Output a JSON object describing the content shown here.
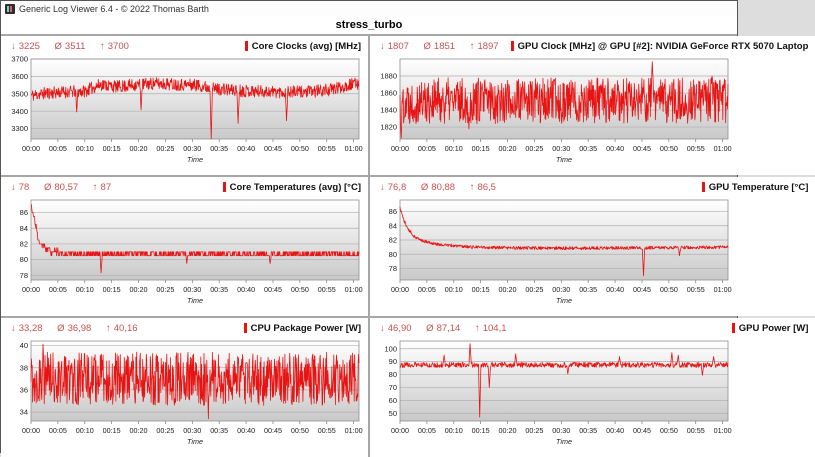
{
  "window": {
    "title": "Generic Log Viewer 6.4 - © 2022 Thomas Barth"
  },
  "page_title": "stress_turbo",
  "glyphs": {
    "min": "↓",
    "avg": "Ø",
    "max": "↑"
  },
  "ui_colors": {
    "accent_red": "#e31414",
    "stats_red": "#c75252",
    "grid_line": "#b0b0b0",
    "divider": "#a6a6a6"
  },
  "time_ticks": [
    "00:00",
    "00:05",
    "00:10",
    "00:15",
    "00:20",
    "00:25",
    "00:30",
    "00:35",
    "00:40",
    "00:45",
    "00:50",
    "00:55",
    "01:00"
  ],
  "chart_data": [
    {
      "type": "line",
      "title": "Core Clocks (avg) [MHz]",
      "xlabel": "Time",
      "stats": {
        "min": "3225",
        "avg": "3511",
        "max": "3700"
      },
      "color": "#e81414",
      "xlim": [
        0,
        61
      ],
      "ylim": [
        3240,
        3700
      ],
      "yticks": [
        3300,
        3400,
        3500,
        3600,
        3700
      ],
      "profile": {
        "seed": 11,
        "points": 820,
        "noise": 36,
        "anchors": [
          [
            0,
            3490
          ],
          [
            3,
            3505
          ],
          [
            6,
            3510
          ],
          [
            10,
            3515
          ],
          [
            13,
            3555
          ],
          [
            16,
            3540
          ],
          [
            19,
            3550
          ],
          [
            23,
            3560
          ],
          [
            27,
            3555
          ],
          [
            31,
            3550
          ],
          [
            34,
            3530
          ],
          [
            38,
            3520
          ],
          [
            42,
            3515
          ],
          [
            47,
            3510
          ],
          [
            52,
            3512
          ],
          [
            56,
            3525
          ],
          [
            59,
            3550
          ],
          [
            61,
            3560
          ]
        ],
        "spikes": [
          [
            8.5,
            3395
          ],
          [
            20.5,
            3408
          ],
          [
            33.5,
            3242
          ],
          [
            38.5,
            3330
          ],
          [
            47.5,
            3345
          ]
        ]
      }
    },
    {
      "type": "line",
      "title": "GPU Clock [MHz] @ GPU [#2]: NVIDIA GeForce RTX 5070 Laptop",
      "xlabel": "Time",
      "stats": {
        "min": "1807",
        "avg": "1851",
        "max": "1897"
      },
      "color": "#e81414",
      "xlim": [
        0,
        61
      ],
      "ylim": [
        1806,
        1900
      ],
      "yticks": [
        1820,
        1840,
        1860,
        1880
      ],
      "profile": {
        "seed": 22,
        "points": 820,
        "noise": 27,
        "anchors": [
          [
            0,
            1851
          ],
          [
            61,
            1851
          ]
        ],
        "spikes": [
          [
            0.25,
            1807
          ],
          [
            12.8,
            1818
          ],
          [
            46.9,
            1897
          ],
          [
            58,
            1880
          ]
        ]
      }
    },
    {
      "type": "line",
      "title": "Core Temperatures (avg) [°C]",
      "xlabel": "Time",
      "stats": {
        "min": "78",
        "avg": "80,57",
        "max": "87"
      },
      "color": "#e81414",
      "xlim": [
        0,
        61
      ],
      "ylim": [
        77.4,
        87.6
      ],
      "yticks": [
        78,
        80,
        82,
        84,
        86
      ],
      "profile": {
        "seed": 33,
        "points": 820,
        "noise": 0.45,
        "quantize": 0.5,
        "anchors": [
          [
            0,
            87
          ],
          [
            0.8,
            84.5
          ],
          [
            1.6,
            82
          ],
          [
            2.8,
            81.5
          ],
          [
            4,
            81
          ],
          [
            6,
            80.7
          ],
          [
            61,
            80.7
          ]
        ],
        "spikes": [
          [
            13,
            78.3
          ],
          [
            29,
            79.5
          ],
          [
            44.5,
            79.5
          ]
        ]
      }
    },
    {
      "type": "line",
      "title": "GPU Temperature [°C]",
      "xlabel": "Time",
      "stats": {
        "min": "76,8",
        "avg": "80,88",
        "max": "86,5"
      },
      "color": "#e81414",
      "xlim": [
        0,
        61
      ],
      "ylim": [
        76.4,
        87.6
      ],
      "yticks": [
        78,
        80,
        82,
        84,
        86
      ],
      "profile": {
        "seed": 44,
        "points": 820,
        "noise": 0.22,
        "anchors": [
          [
            0,
            86.5
          ],
          [
            0.8,
            84.6
          ],
          [
            1.6,
            83.4
          ],
          [
            2.5,
            82.6
          ],
          [
            3.5,
            82.1
          ],
          [
            5,
            81.7
          ],
          [
            7,
            81.4
          ],
          [
            10,
            81.2
          ],
          [
            14,
            81.0
          ],
          [
            20,
            80.9
          ],
          [
            30,
            80.85
          ],
          [
            45,
            80.9
          ],
          [
            61,
            81.0
          ]
        ],
        "spikes": [
          [
            45.3,
            77.0
          ],
          [
            52,
            79.8
          ]
        ]
      }
    },
    {
      "type": "line",
      "title": "CPU Package Power [W]",
      "xlabel": "Time",
      "stats": {
        "min": "33,28",
        "avg": "36,98",
        "max": "40,16"
      },
      "color": "#e81414",
      "xlim": [
        0,
        61
      ],
      "ylim": [
        33.2,
        40.4
      ],
      "yticks": [
        34,
        36,
        38,
        40
      ],
      "profile": {
        "seed": 55,
        "points": 820,
        "noise": 2.4,
        "anchors": [
          [
            0,
            37
          ],
          [
            61,
            37
          ]
        ],
        "spikes": [
          [
            2.2,
            40.1
          ],
          [
            33,
            33.4
          ]
        ]
      }
    },
    {
      "type": "line",
      "title": "GPU Power [W]",
      "xlabel": "Time",
      "stats": {
        "min": "46,90",
        "avg": "87,14",
        "max": "104,1"
      },
      "color": "#e81414",
      "xlim": [
        0,
        61
      ],
      "ylim": [
        44,
        106
      ],
      "yticks": [
        50,
        60,
        70,
        80,
        90,
        100
      ],
      "profile": {
        "seed": 66,
        "points": 820,
        "noise": 2.0,
        "anchors": [
          [
            0,
            87.5
          ],
          [
            61,
            87.5
          ]
        ],
        "spikes": [
          [
            8.2,
            95
          ],
          [
            13,
            104
          ],
          [
            14.8,
            47
          ],
          [
            16.6,
            70
          ],
          [
            21.5,
            96
          ],
          [
            31.2,
            80.5
          ],
          [
            40.8,
            94
          ],
          [
            50.6,
            97
          ],
          [
            51.8,
            95
          ],
          [
            56.2,
            79.5
          ],
          [
            58.3,
            94
          ]
        ]
      }
    }
  ]
}
